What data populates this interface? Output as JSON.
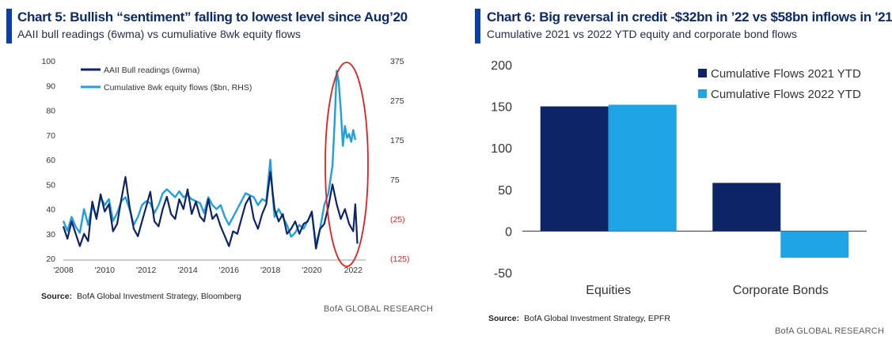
{
  "chart_data": [
    {
      "type": "line",
      "title": "Chart 5: Bullish “sentiment” falling to lowest level since Aug’20",
      "subtitle": "AAII bull readings (6wma) vs cumuliative 8wk equity flows",
      "source_label": "Source:",
      "source_text": "BofA Global Investment Strategy, Bloomberg",
      "brand": "BofA GLOBAL RESEARCH",
      "x_tick_labels": [
        "'2008",
        "'2010",
        "'2012",
        "'2014",
        "'2016",
        "'2018",
        "'2020",
        "2022"
      ],
      "xlim": [
        2008,
        2022.6
      ],
      "y_left_ticks": [
        "100",
        "90",
        "80",
        "70",
        "60",
        "50",
        "40",
        "30",
        "20"
      ],
      "y_left_lim": [
        20,
        100
      ],
      "y_right_ticks": [
        "375",
        "275",
        "175",
        "75",
        "(25)",
        "(125)"
      ],
      "y_right_lim": [
        -125,
        375
      ],
      "legend_position": "top-left",
      "series": [
        {
          "name": "AAII Bull readings (6wma)",
          "axis": "left",
          "color": "#0d2466",
          "x": [
            2008.0,
            2008.2,
            2008.4,
            2008.6,
            2008.8,
            2009.0,
            2009.2,
            2009.4,
            2009.6,
            2009.8,
            2010.0,
            2010.2,
            2010.4,
            2010.6,
            2010.8,
            2011.0,
            2011.2,
            2011.4,
            2011.6,
            2011.8,
            2012.0,
            2012.2,
            2012.4,
            2012.6,
            2012.8,
            2013.0,
            2013.2,
            2013.4,
            2013.6,
            2013.8,
            2014.0,
            2014.2,
            2014.4,
            2014.6,
            2014.8,
            2015.0,
            2015.2,
            2015.4,
            2015.6,
            2015.8,
            2016.0,
            2016.2,
            2016.4,
            2016.6,
            2016.8,
            2017.0,
            2017.2,
            2017.4,
            2017.6,
            2017.8,
            2018.0,
            2018.2,
            2018.4,
            2018.6,
            2018.8,
            2019.0,
            2019.2,
            2019.4,
            2019.6,
            2019.8,
            2020.0,
            2020.2,
            2020.4,
            2020.6,
            2020.8,
            2021.0,
            2021.2,
            2021.4,
            2021.6,
            2021.8,
            2022.0,
            2022.1,
            2022.2
          ],
          "values": [
            33,
            28,
            35,
            30,
            25,
            30,
            27,
            43,
            36,
            46,
            39,
            42,
            31,
            34,
            44,
            53,
            41,
            32,
            29,
            35,
            41,
            47,
            35,
            33,
            40,
            45,
            38,
            36,
            44,
            40,
            48,
            38,
            43,
            37,
            35,
            44,
            36,
            38,
            33,
            29,
            25,
            31,
            30,
            36,
            42,
            45,
            36,
            32,
            38,
            42,
            55,
            40,
            35,
            38,
            30,
            32,
            35,
            30,
            34,
            35,
            39,
            24,
            32,
            34,
            41,
            50,
            42,
            36,
            40,
            34,
            31,
            42,
            26
          ]
        },
        {
          "name": "Cumulative 8wk equity flows ($bn, RHS)",
          "axis": "right",
          "color": "#1f9fe0",
          "x": [
            2008.0,
            2008.2,
            2008.4,
            2008.6,
            2008.8,
            2009.0,
            2009.2,
            2009.4,
            2009.6,
            2009.8,
            2010.0,
            2010.2,
            2010.4,
            2010.6,
            2010.8,
            2011.0,
            2011.2,
            2011.4,
            2011.6,
            2011.8,
            2012.0,
            2012.2,
            2012.4,
            2012.6,
            2012.8,
            2013.0,
            2013.2,
            2013.4,
            2013.6,
            2013.8,
            2014.0,
            2014.2,
            2014.4,
            2014.6,
            2014.8,
            2015.0,
            2015.2,
            2015.4,
            2015.6,
            2015.8,
            2016.0,
            2016.2,
            2016.4,
            2016.6,
            2016.8,
            2017.0,
            2017.2,
            2017.4,
            2017.6,
            2017.8,
            2018.0,
            2018.1,
            2018.2,
            2018.4,
            2018.6,
            2018.8,
            2019.0,
            2019.2,
            2019.4,
            2019.6,
            2019.8,
            2020.0,
            2020.2,
            2020.4,
            2020.6,
            2020.8,
            2021.0,
            2021.1,
            2021.2,
            2021.3,
            2021.4,
            2021.5,
            2021.6,
            2021.7,
            2021.8,
            2021.9,
            2022.0,
            2022.1
          ],
          "values": [
            -30,
            -55,
            -20,
            -45,
            -60,
            0,
            -40,
            10,
            -20,
            30,
            10,
            25,
            -30,
            -10,
            20,
            30,
            0,
            -40,
            -20,
            10,
            20,
            15,
            -10,
            10,
            40,
            50,
            40,
            30,
            45,
            30,
            35,
            25,
            20,
            15,
            -10,
            30,
            10,
            0,
            10,
            -20,
            -40,
            -20,
            0,
            20,
            40,
            35,
            30,
            10,
            25,
            20,
            125,
            40,
            -20,
            0,
            -20,
            -40,
            -70,
            -60,
            -40,
            -50,
            -30,
            -10,
            -90,
            -50,
            10,
            40,
            110,
            220,
            350,
            320,
            250,
            160,
            210,
            180,
            190,
            170,
            200,
            175
          ]
        }
      ],
      "annotation": "red ellipse highlighting 2021-2022"
    },
    {
      "type": "bar",
      "title": "Chart 6: Big reversal in credit -$32bn in ’22 vs $58bn inflows in '21",
      "subtitle": "Cumulative 2021 vs 2022 YTD equity and corporate bond flows",
      "source_label": "Source:",
      "source_text": "BofA Global Investment Strategy, EPFR",
      "brand": "BofA GLOBAL RESEARCH",
      "categories": [
        "Equities",
        "Corporate Bonds"
      ],
      "y_ticks": [
        "200",
        "150",
        "100",
        "50",
        "0",
        "-50"
      ],
      "ylim": [
        -50,
        200
      ],
      "legend_position": "top-right",
      "series": [
        {
          "name": "Cumulative Flows 2021 YTD",
          "color": "#0d2466",
          "values": [
            150,
            58
          ]
        },
        {
          "name": "Cumulative Flows 2022 YTD",
          "color": "#1fa5e6",
          "values": [
            152,
            -32
          ]
        }
      ]
    }
  ]
}
